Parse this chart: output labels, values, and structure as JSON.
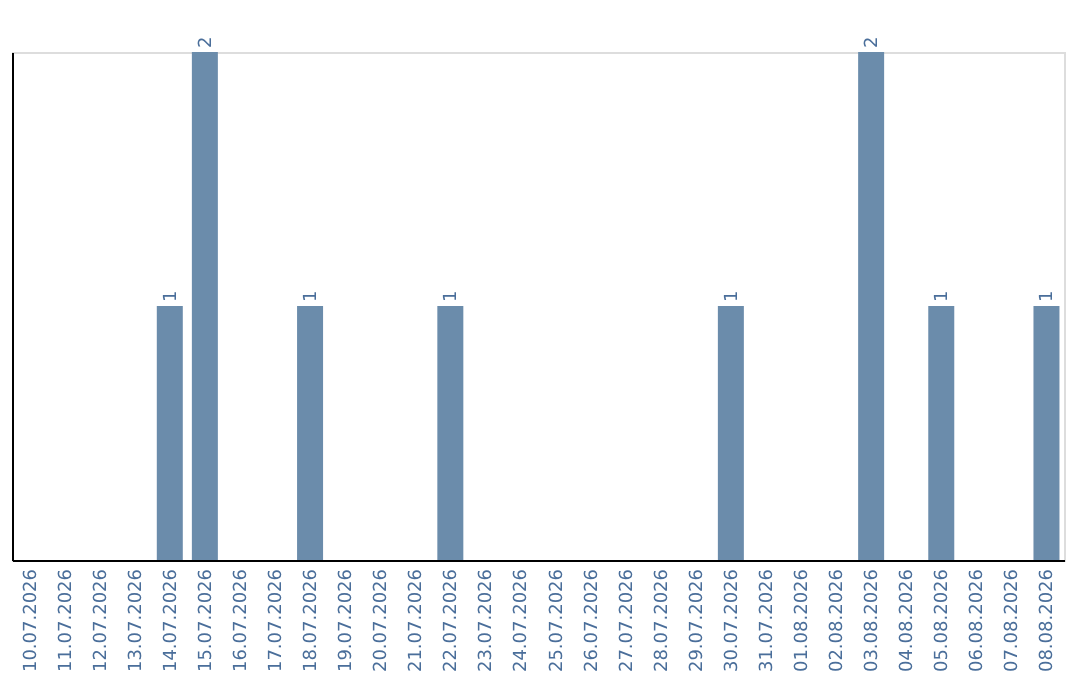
{
  "chart_data": {
    "type": "bar",
    "categories": [
      "10.07.2026",
      "11.07.2026",
      "12.07.2026",
      "13.07.2026",
      "14.07.2026",
      "15.07.2026",
      "16.07.2026",
      "17.07.2026",
      "18.07.2026",
      "19.07.2026",
      "20.07.2026",
      "21.07.2026",
      "22.07.2026",
      "23.07.2026",
      "24.07.2026",
      "25.07.2026",
      "26.07.2026",
      "27.07.2026",
      "28.07.2026",
      "29.07.2026",
      "30.07.2026",
      "31.07.2026",
      "01.08.2026",
      "02.08.2026",
      "03.08.2026",
      "04.08.2026",
      "05.08.2026",
      "06.08.2026",
      "07.08.2026",
      "08.08.2026"
    ],
    "values": [
      0,
      0,
      0,
      0,
      1,
      2,
      0,
      0,
      1,
      0,
      0,
      0,
      1,
      0,
      0,
      0,
      0,
      0,
      0,
      0,
      1,
      0,
      0,
      0,
      2,
      0,
      1,
      0,
      0,
      1
    ],
    "color": "#6b8cab",
    "value_labels": [
      null,
      null,
      null,
      null,
      "1",
      "2",
      null,
      null,
      "1",
      null,
      null,
      null,
      "1",
      null,
      null,
      null,
      null,
      null,
      null,
      null,
      "1",
      null,
      null,
      null,
      "2",
      null,
      "1",
      null,
      null,
      "1"
    ],
    "tick_labels": "x",
    "grid": false
  }
}
